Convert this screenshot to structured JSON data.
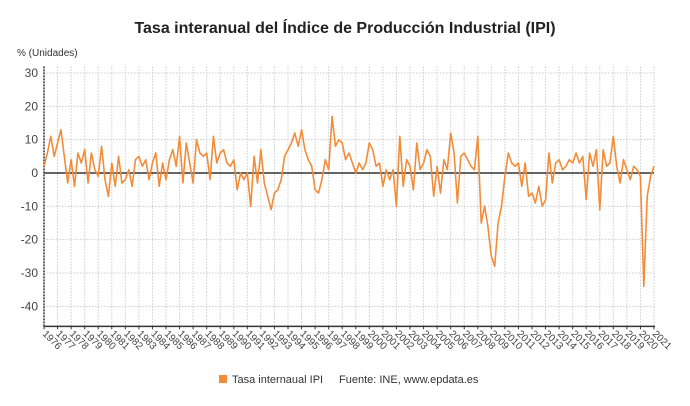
{
  "chart_data": {
    "type": "line",
    "title": "Tasa interanual del Índice de Producción Industrial (IPI)",
    "ylabel": "% (Unidades)",
    "xlabel": "",
    "ylim": [
      -46,
      32
    ],
    "yticks": [
      30,
      20,
      10,
      0,
      -10,
      -20,
      -30,
      -40
    ],
    "xticks": [
      "1976",
      "1977",
      "1978",
      "1979",
      "1980",
      "1981",
      "1982",
      "1983",
      "1984",
      "1985",
      "1986",
      "1987",
      "1988",
      "1989",
      "1990",
      "1991",
      "1992",
      "1993",
      "1994",
      "1995",
      "1996",
      "1997",
      "1998",
      "1999",
      "2000",
      "2001",
      "2002",
      "2003",
      "2004",
      "2005",
      "2006",
      "2007",
      "2008",
      "2009",
      "2010",
      "2011",
      "2012",
      "2013",
      "2014",
      "2015",
      "2016",
      "2017",
      "2018",
      "2019",
      "2020",
      "2021"
    ],
    "grid": true,
    "legend_position": "bottom",
    "source": "Fuente: INE, www.epdata.es",
    "series": [
      {
        "name": "Tasa internaual IPI",
        "color": "#f28c38",
        "start": "1976-01",
        "frequency": "quarterly",
        "values": [
          2,
          6,
          11,
          5,
          9,
          13,
          5,
          -3,
          4,
          -4,
          6,
          3,
          7,
          -3,
          6,
          1,
          -1,
          8,
          -2,
          -7,
          3,
          -4,
          5,
          -3,
          -2,
          1,
          -4,
          4,
          5,
          2,
          4,
          -2,
          3,
          6,
          -4,
          3,
          -2,
          4,
          7,
          2,
          11,
          -3,
          9,
          3,
          -3,
          10,
          6,
          5,
          6,
          -2,
          11,
          3,
          6,
          7,
          3,
          2,
          4,
          -5,
          0,
          -2,
          0,
          -10,
          5,
          -3,
          7,
          -3,
          -7,
          -11,
          -6,
          -5,
          -2,
          5,
          7,
          9,
          12,
          8,
          13,
          7,
          4,
          2,
          -5,
          -6,
          -2,
          4,
          1,
          17,
          8,
          10,
          9,
          4,
          6,
          3,
          0,
          3,
          1,
          3,
          9,
          7,
          2,
          3,
          -4,
          1,
          -2,
          1,
          -10,
          11,
          -4,
          4,
          2,
          -5,
          9,
          1,
          3,
          7,
          5,
          -7,
          2,
          -6,
          4,
          1,
          12,
          6,
          -9,
          5,
          6,
          4,
          2,
          1,
          11,
          -15,
          -10,
          -16,
          -25,
          -28,
          -15,
          -10,
          -1,
          6,
          3,
          2,
          3,
          -4,
          3,
          -7,
          -6,
          -9,
          -4,
          -10,
          -8,
          6,
          -3,
          3,
          4,
          1,
          2,
          4,
          3,
          6,
          3,
          5,
          -8,
          6,
          2,
          7,
          -11,
          7,
          2,
          3,
          11,
          2,
          -3,
          4,
          1,
          -2,
          2,
          1,
          -1,
          -34,
          -7,
          -1,
          2
        ]
      }
    ]
  },
  "colors": {
    "series": "#f28c38",
    "axis": "#444444",
    "grid": "#cccccc"
  }
}
